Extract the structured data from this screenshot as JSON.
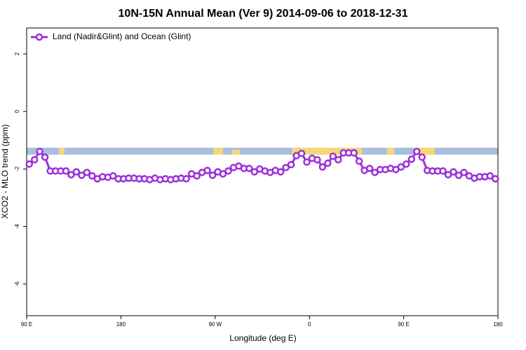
{
  "chart_data": {
    "type": "line",
    "title": "10N-15N Annual Mean (Ver 9)   2014-09-06 to 2018-12-31",
    "x_label": "Longitude (deg E)",
    "y_label": "XCO2 - MLO trend (ppm)",
    "xlim": [
      90,
      540
    ],
    "ylim": [
      -7.1,
      2.9
    ],
    "xticks": [
      {
        "value": 90,
        "label": "90 E"
      },
      180,
      {
        "value": 270,
        "label": "90 W"
      },
      {
        "value": 360,
        "label": "0"
      },
      {
        "value": 450,
        "label": "90 E"
      },
      {
        "value": 540,
        "label": "180"
      }
    ],
    "yticks": [
      -6,
      -4,
      -2,
      0,
      2
    ],
    "x": [
      92.5,
      97.5,
      102.5,
      107.5,
      112.5,
      117.5,
      122.5,
      127.5,
      132.5,
      137.5,
      142.5,
      147.5,
      152.5,
      157.5,
      162.5,
      167.5,
      172.5,
      177.5,
      182.5,
      187.5,
      192.5,
      197.5,
      202.5,
      207.5,
      212.5,
      217.5,
      222.5,
      227.5,
      232.5,
      237.5,
      242.5,
      247.5,
      252.5,
      257.5,
      262.5,
      267.5,
      272.5,
      277.5,
      282.5,
      287.5,
      292.5,
      297.5,
      302.5,
      307.5,
      312.5,
      317.5,
      322.5,
      327.5,
      332.5,
      337.5,
      342.5,
      347.5,
      352.5,
      357.5,
      362.5,
      367.5,
      372.5,
      377.5,
      382.5,
      387.5,
      392.5,
      397.5,
      402.5,
      407.5,
      412.5,
      417.5,
      422.5,
      427.5,
      432.5,
      437.5,
      442.5,
      447.5,
      452.5,
      457.5,
      462.5,
      467.5,
      472.5,
      477.5,
      482.5,
      487.5,
      492.5,
      497.5,
      502.5,
      507.5,
      512.5,
      517.5,
      522.5,
      527.5,
      532.5,
      537.5
    ],
    "series": [
      {
        "name": "Land (Nadir&Glint) and Ocean (Glint)",
        "color": "#9b30d9",
        "values": [
          -1.83,
          -1.68,
          -1.39,
          -1.59,
          -2.07,
          -2.07,
          -2.07,
          -2.07,
          -2.2,
          -2.1,
          -2.22,
          -2.12,
          -2.24,
          -2.34,
          -2.27,
          -2.29,
          -2.24,
          -2.34,
          -2.34,
          -2.32,
          -2.32,
          -2.34,
          -2.34,
          -2.37,
          -2.32,
          -2.37,
          -2.34,
          -2.37,
          -2.34,
          -2.32,
          -2.34,
          -2.17,
          -2.24,
          -2.12,
          -2.05,
          -2.22,
          -2.1,
          -2.17,
          -2.07,
          -1.95,
          -1.9,
          -1.98,
          -1.98,
          -2.1,
          -2.0,
          -2.07,
          -2.12,
          -2.05,
          -2.1,
          -1.95,
          -1.85,
          -1.54,
          -1.46,
          -1.76,
          -1.63,
          -1.68,
          -1.93,
          -1.8,
          -1.56,
          -1.68,
          -1.44,
          -1.44,
          -1.44,
          -1.73,
          -2.05,
          -1.98,
          -2.12,
          -2.02,
          -2.02,
          -1.98,
          -2.02,
          -1.93,
          -1.83,
          -1.66,
          -1.39,
          -1.59,
          -2.05,
          -2.07,
          -2.07,
          -2.07,
          -2.2,
          -2.1,
          -2.22,
          -2.12,
          -2.24,
          -2.32,
          -2.27,
          -2.27,
          -2.24,
          -2.34
        ]
      }
    ]
  }
}
